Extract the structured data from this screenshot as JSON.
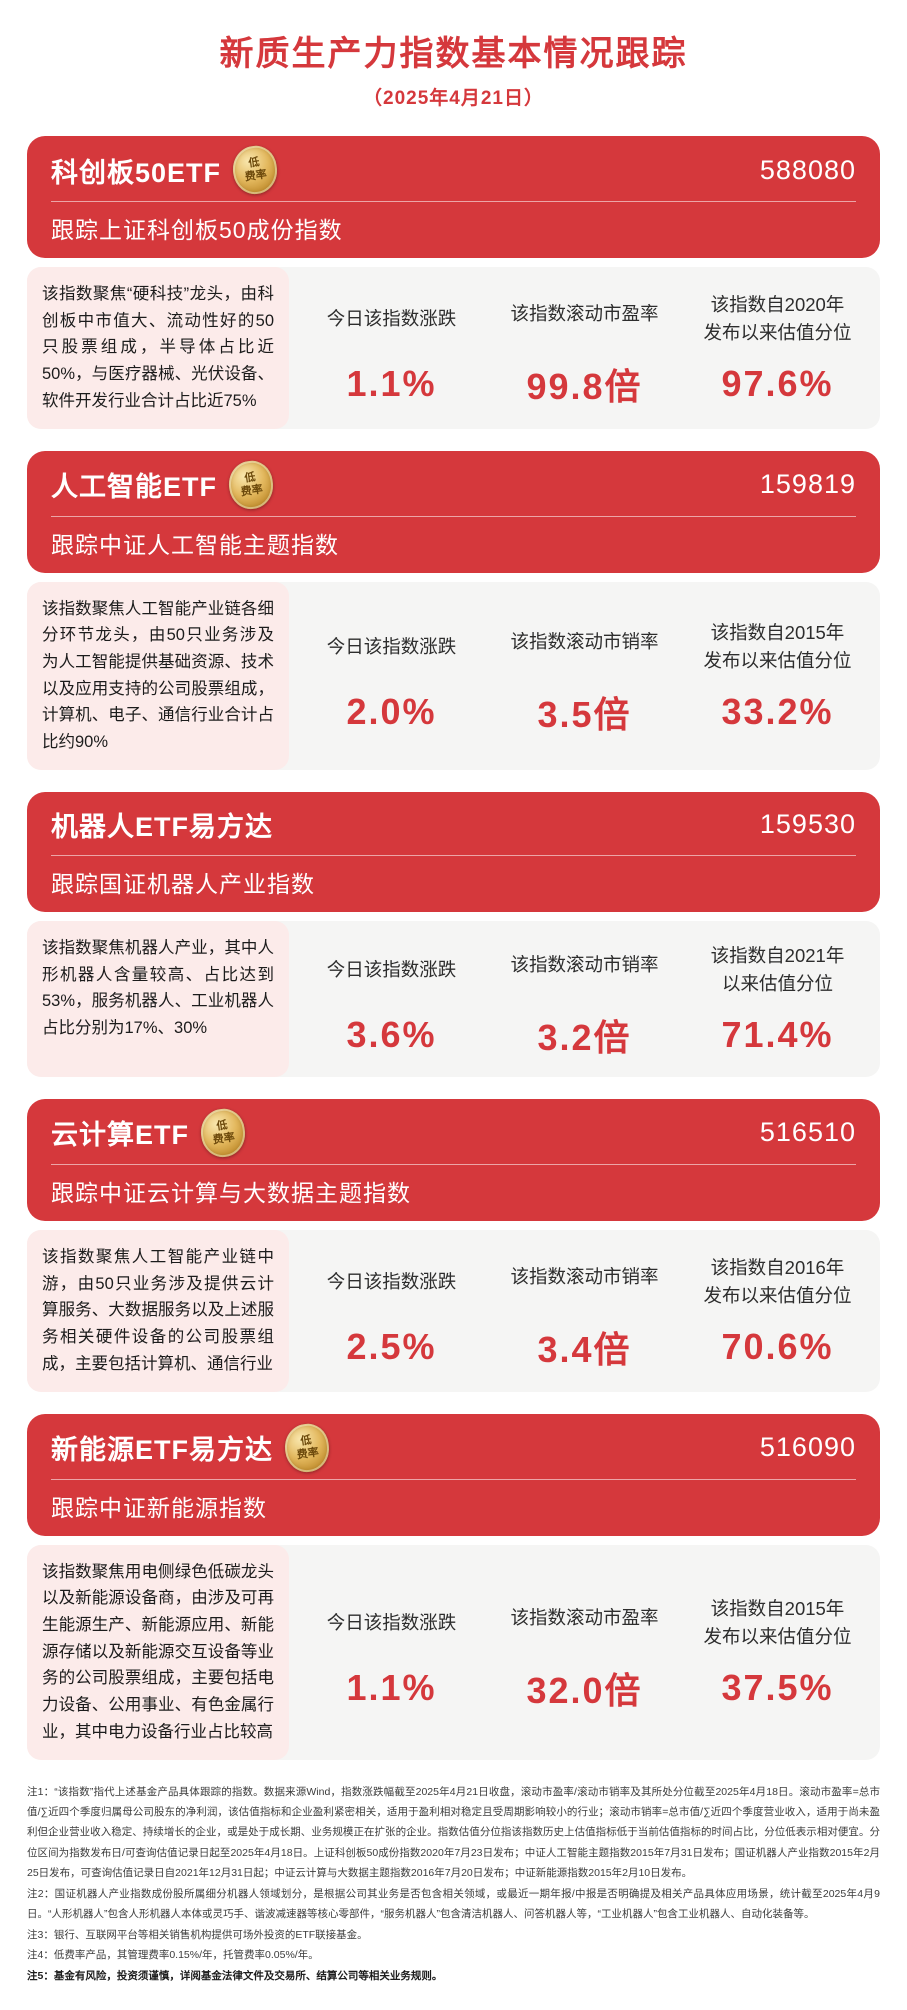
{
  "page": {
    "title": "新质生产力指数基本情况跟踪",
    "subtitle": "（2025年4月21日）"
  },
  "badge": {
    "line1": "低",
    "line2": "费率"
  },
  "accent_color": "#d5383c",
  "cards": [
    {
      "name": "科创板50ETF",
      "code": "588080",
      "tracking": "跟踪上证科创板50成份指数",
      "description": "该指数聚焦“硬科技”龙头，由科创板中市值大、流动性好的50只股票组成，半导体占比近50%，与医疗器械、光伏设备、软件开发行业合计占比近75%",
      "stats": [
        {
          "label1": "今日该指数涨跌",
          "label2": "",
          "value": "1.1%"
        },
        {
          "label1": "该指数滚动市盈率",
          "label2": "",
          "value": "99.8倍"
        },
        {
          "label1": "该指数自2020年",
          "label2": "发布以来估值分位",
          "value": "97.6%"
        }
      ]
    },
    {
      "name": "人工智能ETF",
      "code": "159819",
      "tracking": "跟踪中证人工智能主题指数",
      "description": "该指数聚焦人工智能产业链各细分环节龙头，由50只业务涉及为人工智能提供基础资源、技术以及应用支持的公司股票组成，计算机、电子、通信行业合计占比约90%",
      "stats": [
        {
          "label1": "今日该指数涨跌",
          "label2": "",
          "value": "2.0%"
        },
        {
          "label1": "该指数滚动市销率",
          "label2": "",
          "value": "3.5倍"
        },
        {
          "label1": "该指数自2015年",
          "label2": "发布以来估值分位",
          "value": "33.2%"
        }
      ]
    },
    {
      "name": "机器人ETF易方达",
      "code": "159530",
      "tracking": "跟踪国证机器人产业指数",
      "description": "该指数聚焦机器人产业，其中人形机器人含量较高、占比达到53%，服务机器人、工业机器人占比分别为17%、30%",
      "stats": [
        {
          "label1": "今日该指数涨跌",
          "label2": "",
          "value": "3.6%"
        },
        {
          "label1": "该指数滚动市销率",
          "label2": "",
          "value": "3.2倍"
        },
        {
          "label1": "该指数自2021年",
          "label2": "以来估值分位",
          "value": "71.4%"
        }
      ]
    },
    {
      "name": "云计算ETF",
      "code": "516510",
      "tracking": "跟踪中证云计算与大数据主题指数",
      "description": "该指数聚焦人工智能产业链中游，由50只业务涉及提供云计算服务、大数据服务以及上述服务相关硬件设备的公司股票组成，主要包括计算机、通信行业",
      "stats": [
        {
          "label1": "今日该指数涨跌",
          "label2": "",
          "value": "2.5%"
        },
        {
          "label1": "该指数滚动市销率",
          "label2": "",
          "value": "3.4倍"
        },
        {
          "label1": "该指数自2016年",
          "label2": "发布以来估值分位",
          "value": "70.6%"
        }
      ]
    },
    {
      "name": "新能源ETF易方达",
      "code": "516090",
      "tracking": "跟踪中证新能源指数",
      "description": "该指数聚焦用电侧绿色低碳龙头以及新能源设备商，由涉及可再生能源生产、新能源应用、新能源存储以及新能源交互设备等业务的公司股票组成，主要包括电力设备、公用事业、有色金属行业，其中电力设备行业占比较高",
      "stats": [
        {
          "label1": "今日该指数涨跌",
          "label2": "",
          "value": "1.1%"
        },
        {
          "label1": "该指数滚动市盈率",
          "label2": "",
          "value": "32.0倍"
        },
        {
          "label1": "该指数自2015年",
          "label2": "发布以来估值分位",
          "value": "37.5%"
        }
      ]
    }
  ],
  "footnotes": [
    "注1：“该指数”指代上述基金产品具体跟踪的指数。数据来源Wind，指数涨跌幅截至2025年4月21日收盘，滚动市盈率/滚动市销率及其所处分位截至2025年4月18日。滚动市盈率=总市值/∑近四个季度归属母公司股东的净利润，该估值指标和企业盈利紧密相关，适用于盈利相对稳定且受周期影响较小的行业；滚动市销率=总市值/∑近四个季度营业收入，适用于尚未盈利但企业营业收入稳定、持续增长的企业，或是处于成长期、业务规模正在扩张的企业。指数估值分位指该指数历史上估值指标低于当前估值指标的时间占比，分位低表示相对便宜。分位区间为指数发布日/可查询估值记录日起至2025年4月18日。上证科创板50成份指数2020年7月23日发布；中证人工智能主题指数2015年7月31日发布；国证机器人产业指数2015年2月25日发布，可查询估值记录日自2021年12月31日起；中证云计算与大数据主题指数2016年7月20日发布；中证新能源指数2015年2月10日发布。",
    "注2：国证机器人产业指数成份股所属细分机器人领域划分，是根据公司其业务是否包含相关领域，或最近一期年报/中报是否明确提及相关产品具体应用场景，统计截至2025年4月9日。“人形机器人”包含人形机器人本体或灵巧手、谐波减速器等核心零部件，“服务机器人”包含清洁机器人、问答机器人等，“工业机器人”包含工业机器人、自动化装备等。",
    "注3：银行、互联网平台等相关销售机构提供可场外投资的ETF联接基金。",
    "注4：低费率产品，其管理费率0.15%/年，托管费率0.05%/年。",
    "注5：基金有风险，投资须谨慎，详阅基金法律文件及交易所、结算公司等相关业务规则。"
  ]
}
